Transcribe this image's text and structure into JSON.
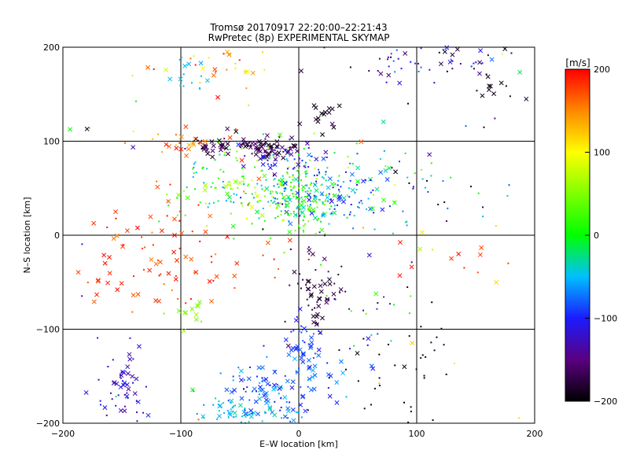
{
  "chart_data": {
    "type": "scatter",
    "title": "Tromsø 20170917 22:20:00–22:21:43",
    "subtitle": "RwPretec (8p) EXPERIMENTAL SKYMAP",
    "xlabel": "E–W location [km]",
    "ylabel": "N–S location [km]",
    "xlim": [
      -200,
      200
    ],
    "ylim": [
      -200,
      200
    ],
    "x_ticks": [
      -200,
      -100,
      0,
      100,
      200
    ],
    "y_ticks": [
      -200,
      -100,
      0,
      100,
      200
    ],
    "grid": true,
    "markers": [
      "dot",
      "cross"
    ],
    "colorbar": {
      "label": "[m/s]",
      "min": -200,
      "max": 200,
      "ticks": [
        200,
        100,
        0,
        -100,
        -200
      ],
      "colormap": "rainbow: black (-200) → purple → blue → cyan → green (0) → yellow → orange → red (200)"
    },
    "clusters": [
      {
        "x": -30,
        "y": 95,
        "sx": 12,
        "sy": 6,
        "n": 70,
        "vmin": -200,
        "vmax": -150,
        "cross": 0.7
      },
      {
        "x": -70,
        "y": 95,
        "sx": 12,
        "sy": 5,
        "n": 30,
        "vmin": -200,
        "vmax": -150,
        "cross": 0.8
      },
      {
        "x": 15,
        "y": 130,
        "sx": 10,
        "sy": 8,
        "n": 15,
        "vmin": -200,
        "vmax": -180,
        "cross": 0.9
      },
      {
        "x": -10,
        "y": 80,
        "sx": 15,
        "sy": 10,
        "n": 40,
        "vmin": -140,
        "vmax": -90,
        "cross": 0.5
      },
      {
        "x": -30,
        "y": 50,
        "sx": 35,
        "sy": 20,
        "n": 230,
        "vmin": -60,
        "vmax": 90,
        "cross": 0.15
      },
      {
        "x": 20,
        "y": 45,
        "sx": 25,
        "sy": 20,
        "n": 160,
        "vmin": -120,
        "vmax": 20,
        "cross": 0.3
      },
      {
        "x": 0,
        "y": 20,
        "sx": 12,
        "sy": 15,
        "n": 50,
        "vmin": -40,
        "vmax": 60,
        "cross": 0.1
      },
      {
        "x": -130,
        "y": -35,
        "sx": 40,
        "sy": 25,
        "n": 50,
        "vmin": 160,
        "vmax": 200,
        "cross": 0.8
      },
      {
        "x": -80,
        "y": 5,
        "sx": 40,
        "sy": 40,
        "n": 40,
        "vmin": 150,
        "vmax": 200,
        "cross": 0.4
      },
      {
        "x": -95,
        "y": -80,
        "sx": 8,
        "sy": 8,
        "n": 12,
        "vmin": 30,
        "vmax": 60,
        "cross": 0.8
      },
      {
        "x": -100,
        "y": 100,
        "sx": 12,
        "sy": 6,
        "n": 20,
        "vmin": 110,
        "vmax": 200,
        "cross": 0.6
      },
      {
        "x": 15,
        "y": -60,
        "sx": 10,
        "sy": 25,
        "n": 60,
        "vmin": -190,
        "vmax": -160,
        "cross": 0.5
      },
      {
        "x": 5,
        "y": -115,
        "sx": 8,
        "sy": 15,
        "n": 45,
        "vmin": -110,
        "vmax": -70,
        "cross": 0.5
      },
      {
        "x": -20,
        "y": -165,
        "sx": 25,
        "sy": 18,
        "n": 120,
        "vmin": -110,
        "vmax": -50,
        "cross": 0.5
      },
      {
        "x": -40,
        "y": -190,
        "sx": 20,
        "sy": 8,
        "n": 50,
        "vmin": -60,
        "vmax": -30,
        "cross": 0.4
      },
      {
        "x": -150,
        "y": -165,
        "sx": 12,
        "sy": 22,
        "n": 55,
        "vmin": -150,
        "vmax": -90,
        "cross": 0.4
      },
      {
        "x": -95,
        "y": 175,
        "sx": 10,
        "sy": 10,
        "n": 15,
        "vmin": -60,
        "vmax": -40,
        "cross": 0.5
      },
      {
        "x": -70,
        "y": 180,
        "sx": 30,
        "sy": 15,
        "n": 30,
        "vmin": 80,
        "vmax": 200,
        "cross": 0.3
      },
      {
        "x": 110,
        "y": 185,
        "sx": 40,
        "sy": 12,
        "n": 60,
        "vmin": -200,
        "vmax": -60,
        "cross": 0.2
      },
      {
        "x": 170,
        "y": 155,
        "sx": 12,
        "sy": 6,
        "n": 12,
        "vmin": -200,
        "vmax": -180,
        "cross": 0.8
      },
      {
        "x": 110,
        "y": 60,
        "sx": 40,
        "sy": 35,
        "n": 40,
        "vmin": -200,
        "vmax": 20,
        "cross": 0.25
      },
      {
        "x": 140,
        "y": -25,
        "sx": 30,
        "sy": 10,
        "n": 10,
        "vmin": 170,
        "vmax": 200,
        "cross": 0.8
      },
      {
        "x": 90,
        "y": -150,
        "sx": 30,
        "sy": 35,
        "n": 40,
        "vmin": -200,
        "vmax": -180,
        "cross": 0.1
      },
      {
        "x": 60,
        "y": -80,
        "sx": 25,
        "sy": 25,
        "n": 20,
        "vmin": -140,
        "vmax": 40,
        "cross": 0.3
      },
      {
        "x": 0,
        "y": 0,
        "sx": 200,
        "sy": 200,
        "n": 120,
        "vmin": -200,
        "vmax": 200,
        "cross": 0.15
      }
    ]
  }
}
